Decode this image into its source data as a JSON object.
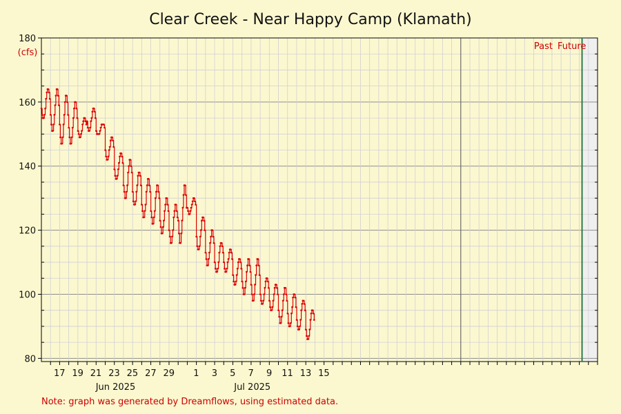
{
  "chart_data": {
    "type": "line",
    "title": "Clear Creek - Near Happy Camp (Klamath)",
    "y_unit": "(cfs)",
    "ylim": [
      79,
      180
    ],
    "y_ticks": [
      80,
      100,
      120,
      140,
      160,
      180
    ],
    "x_range": [
      "2025-05-16",
      "2025-07-16"
    ],
    "x_tick_labels": [
      "17",
      "19",
      "21",
      "23",
      "25",
      "27",
      "29",
      "1",
      "3",
      "5",
      "7",
      "9",
      "11",
      "13",
      "15"
    ],
    "month_labels": [
      "Jun 2025",
      "Jul 2025"
    ],
    "grid": true,
    "divider_date": "2025-07-14",
    "region_labels": [
      "Past",
      "Future"
    ],
    "note": "Note: graph was generated by Dreamflows, using estimated data.",
    "series": [
      {
        "color": "#dd0000",
        "daily_peaks": [
          {
            "date": "2025-05-16",
            "max": 164,
            "min": 155
          },
          {
            "date": "2025-05-17",
            "max": 164,
            "min": 151
          },
          {
            "date": "2025-05-18",
            "max": 162,
            "min": 147
          },
          {
            "date": "2025-05-19",
            "max": 160,
            "min": 147
          },
          {
            "date": "2025-05-20",
            "max": 155,
            "min": 149
          },
          {
            "date": "2025-05-21",
            "max": 158,
            "min": 151
          },
          {
            "date": "2025-05-22",
            "max": 153,
            "min": 150
          },
          {
            "date": "2025-05-23",
            "max": 149,
            "min": 142
          },
          {
            "date": "2025-05-24",
            "max": 144,
            "min": 136
          },
          {
            "date": "2025-05-25",
            "max": 142,
            "min": 130
          },
          {
            "date": "2025-05-26",
            "max": 138,
            "min": 128
          },
          {
            "date": "2025-05-27",
            "max": 136,
            "min": 124
          },
          {
            "date": "2025-05-28",
            "max": 134,
            "min": 122
          },
          {
            "date": "2025-05-29",
            "max": 130,
            "min": 119
          },
          {
            "date": "2025-05-30",
            "max": 128,
            "min": 116
          },
          {
            "date": "2025-05-31",
            "max": 134,
            "min": 116
          },
          {
            "date": "2025-06-01",
            "max": 130,
            "min": 125
          },
          {
            "date": "2025-06-02",
            "max": 124,
            "min": 114
          },
          {
            "date": "2025-06-03",
            "max": 120,
            "min": 109
          },
          {
            "date": "2025-06-04",
            "max": 116,
            "min": 107
          },
          {
            "date": "2025-06-05",
            "max": 114,
            "min": 107
          },
          {
            "date": "2025-06-06",
            "max": 111,
            "min": 103
          },
          {
            "date": "2025-06-07",
            "max": 111,
            "min": 100
          },
          {
            "date": "2025-06-08",
            "max": 111,
            "min": 98
          },
          {
            "date": "2025-06-09",
            "max": 105,
            "min": 97
          },
          {
            "date": "2025-06-10",
            "max": 103,
            "min": 95
          },
          {
            "date": "2025-06-11",
            "max": 102,
            "min": 91
          },
          {
            "date": "2025-06-12",
            "max": 100,
            "min": 90
          },
          {
            "date": "2025-06-13",
            "max": 98,
            "min": 89
          },
          {
            "date": "2025-06-14",
            "max": 95,
            "min": 86
          }
        ]
      }
    ]
  }
}
